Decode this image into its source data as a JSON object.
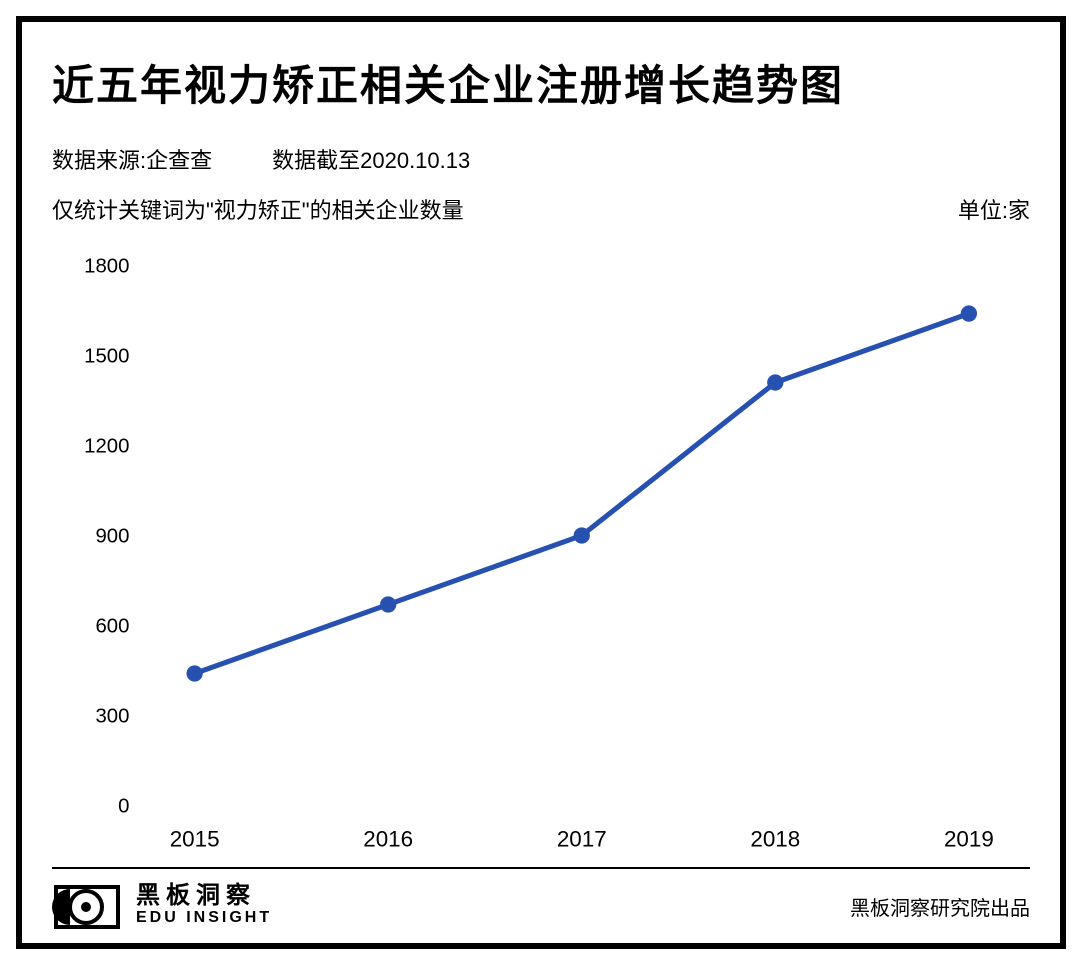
{
  "title": "近五年视力矫正相关企业注册增长趋势图",
  "meta": {
    "source_label": "数据来源:企查查",
    "cutoff_label": "数据截至2020.10.13"
  },
  "note": {
    "left": "仅统计关键词为\"视力矫正\"的相关企业数量",
    "unit": "单位:家"
  },
  "chart": {
    "type": "line",
    "categories": [
      "2015",
      "2016",
      "2017",
      "2018",
      "2019"
    ],
    "values": [
      440,
      670,
      900,
      1410,
      1640
    ],
    "ylim": [
      0,
      1800
    ],
    "ytick_step": 300,
    "yticks": [
      "0",
      "300",
      "600",
      "900",
      "1200",
      "1500",
      "1800"
    ],
    "line_color": "#2751b0",
    "marker_color": "#2751b0",
    "marker_radius": 8,
    "line_width": 5,
    "background_color": "#ffffff",
    "axis_color": "#000000",
    "label_fontsize": 20
  },
  "footer": {
    "brand_cn": "黑板洞察",
    "brand_en": "EDU INSIGHT",
    "credit": "黑板洞察研究院出品"
  },
  "colors": {
    "frame_border": "#000000",
    "text": "#000000",
    "background": "#ffffff"
  }
}
